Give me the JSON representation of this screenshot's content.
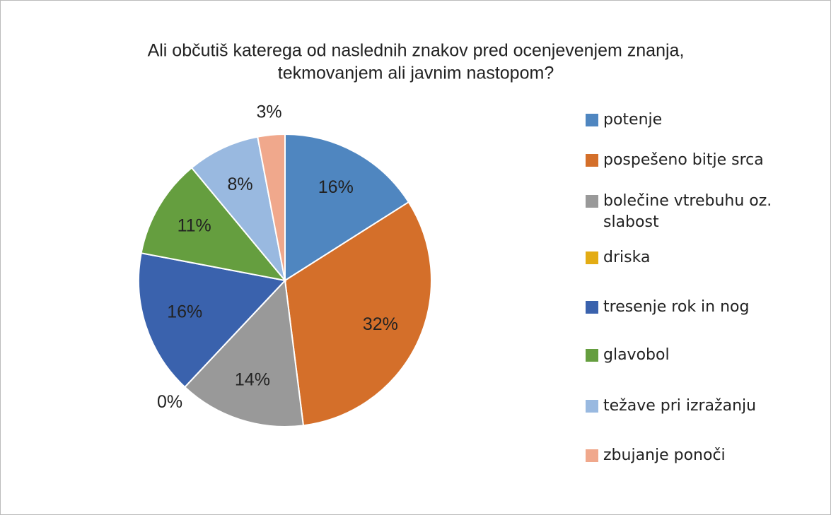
{
  "chart_data": {
    "type": "pie",
    "title": [
      "Ali občutiš katerega od naslednih znakov pred ocenjevenjem znanja,",
      "tekmovanjem ali javnim nastopom?"
    ],
    "categories": [
      "potenje",
      "pospešeno bitje srca",
      "bolečine vtrebuhu oz. slabost",
      "driska",
      "tresenje rok in nog",
      "glavobol",
      "težave pri izražanju",
      "zbujanje ponoči"
    ],
    "values": [
      16,
      32,
      14,
      0,
      16,
      11,
      8,
      3
    ],
    "value_labels": [
      "16%",
      "32%",
      "14%",
      "0%",
      "16%",
      "11%",
      "8%",
      "3%"
    ],
    "colors": [
      "#4f86c0",
      "#d46f2a",
      "#999999",
      "#e3ac14",
      "#3a62ad",
      "#659e3f",
      "#99b9e0",
      "#f0a88c"
    ],
    "legend": "right"
  }
}
